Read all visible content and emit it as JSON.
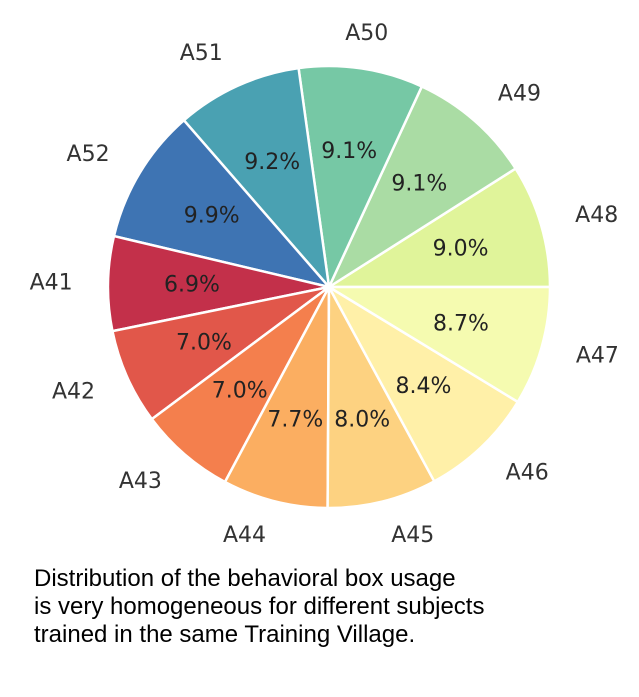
{
  "chart_data": {
    "type": "pie",
    "start_angle_deg": 0,
    "direction": "counterclockwise",
    "categories": [
      "A48",
      "A49",
      "A50",
      "A51",
      "A52",
      "A41",
      "A42",
      "A43",
      "A44",
      "A45",
      "A46",
      "A47"
    ],
    "values": [
      9.0,
      9.1,
      9.1,
      9.2,
      9.9,
      6.9,
      7.0,
      7.0,
      7.7,
      8.0,
      8.4,
      8.7
    ],
    "value_labels": [
      "9.0%",
      "9.1%",
      "9.1%",
      "9.2%",
      "9.9%",
      "6.9%",
      "7.0%",
      "7.0%",
      "7.7%",
      "8.0%",
      "8.4%",
      "8.7%"
    ],
    "colors": [
      "#e0f49a",
      "#aadca4",
      "#76c8a5",
      "#4aa1b2",
      "#3e74b3",
      "#c3304a",
      "#e1574a",
      "#f47f4d",
      "#fbae61",
      "#fdd281",
      "#fff0a8",
      "#f5fbb0"
    ],
    "slice_border_color": "#ffffff"
  },
  "caption": {
    "lines": [
      "Distribution of the behavioral box usage",
      "is very homogeneous for different  subjects",
      "trained in the same Training Village."
    ]
  }
}
